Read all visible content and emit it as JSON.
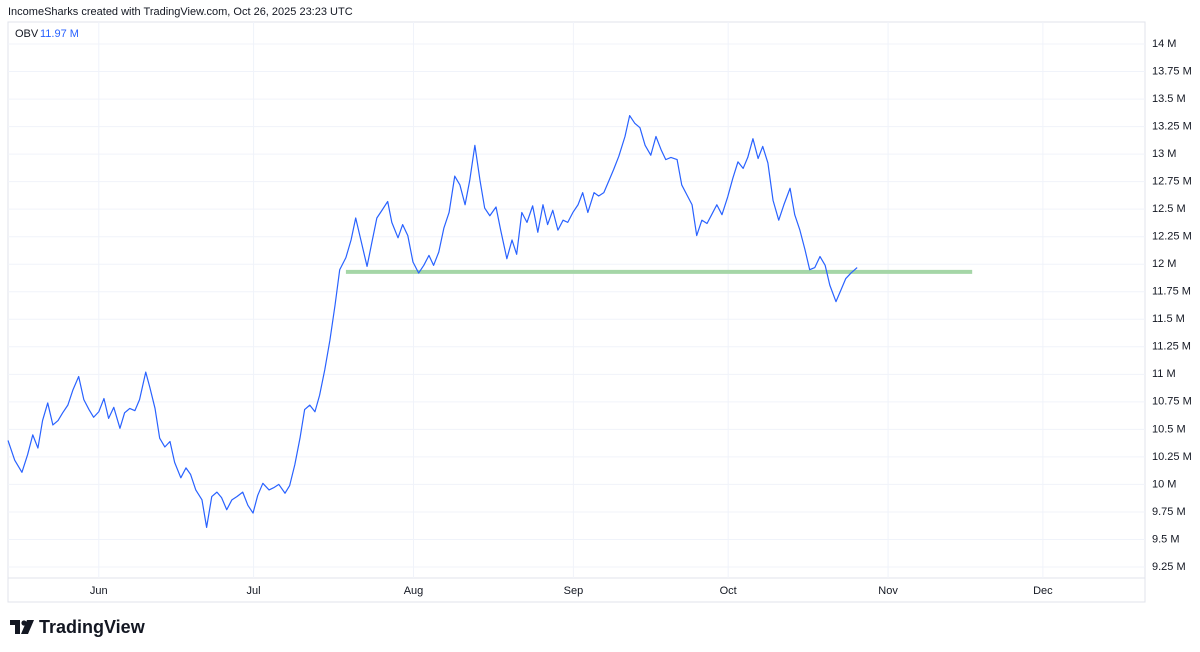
{
  "header": "IncomeSharks created with TradingView.com, Oct 26, 2025 23:23 UTC",
  "chart_data": {
    "type": "line",
    "indicator": "OBV",
    "legend_value": "11.97 M",
    "x": [
      -17.6,
      -16.3,
      -14.9,
      -13.8,
      -12.8,
      -11.8,
      -10.9,
      -9.9,
      -8.9,
      -7.9,
      -7.0,
      -6.0,
      -5.0,
      -3.9,
      -2.9,
      -1.9,
      -1.0,
      0,
      1.0,
      1.9,
      2.9,
      4.1,
      5.0,
      6.0,
      7.0,
      7.9,
      9.1,
      9.9,
      10.9,
      11.8,
      12.8,
      13.8,
      14.7,
      15.9,
      16.9,
      17.8,
      18.8,
      20.0,
      20.9,
      21.9,
      22.9,
      23.8,
      24.8,
      25.8,
      26.8,
      27.9,
      28.9,
      29.9,
      30.8,
      31.8,
      33.0,
      33.9,
      34.9,
      36.1,
      37.0,
      38.0,
      39.0,
      39.9,
      40.9,
      41.9,
      42.8,
      43.8,
      44.8,
      45.8,
      46.7,
      47.9,
      48.9,
      49.8,
      50.8,
      52.0,
      52.9,
      53.9,
      54.9,
      56.0,
      56.8,
      58.0,
      58.9,
      59.9,
      60.9,
      62.0,
      63.0,
      64.0,
      64.9,
      65.9,
      66.9,
      67.9,
      69.0,
      70.0,
      71.0,
      71.9,
      72.9,
      73.9,
      74.8,
      75.8,
      77.0,
      77.9,
      79.1,
      80.1,
      81.0,
      82.0,
      83.0,
      84.1,
      85.1,
      86.1,
      87.0,
      88.0,
      89.0,
      90.0,
      90.9,
      91.9,
      92.9,
      93.8,
      94.8,
      96.0,
      96.9,
      97.9,
      98.9,
      99.8,
      100.8,
      102.0,
      102.9,
      103.9,
      104.9,
      105.9,
      107.0,
      108.0,
      109.0,
      109.9,
      110.9,
      112.1,
      113.0,
      114.0,
      115.0,
      115.9,
      116.9,
      117.9,
      118.8,
      119.8,
      120.8,
      121.9,
      122.9,
      123.9,
      124.9,
      125.8,
      126.8,
      127.8,
      128.7,
      129.7,
      130.7,
      131.8,
      132.8,
      134.0,
      134.9,
      135.9,
      136.9,
      137.8,
      138.8,
      139.8,
      140.8,
      141.7,
      142.9,
      143.9,
      144.8,
      145.8,
      147.0
    ],
    "series": [
      {
        "name": "OBV",
        "color": "#2962ff",
        "values": [
          10.4,
          10.22,
          10.11,
          10.27,
          10.45,
          10.33,
          10.58,
          10.74,
          10.54,
          10.58,
          10.65,
          10.72,
          10.86,
          10.98,
          10.77,
          10.68,
          10.61,
          10.66,
          10.78,
          10.6,
          10.7,
          10.51,
          10.65,
          10.69,
          10.67,
          10.77,
          11.02,
          10.88,
          10.69,
          10.42,
          10.34,
          10.39,
          10.2,
          10.06,
          10.15,
          10.09,
          9.95,
          9.86,
          9.61,
          9.89,
          9.93,
          9.88,
          9.77,
          9.86,
          9.89,
          9.93,
          9.81,
          9.74,
          9.9,
          10.01,
          9.95,
          9.97,
          10.0,
          9.92,
          9.99,
          10.18,
          10.42,
          10.68,
          10.72,
          10.66,
          10.81,
          11.04,
          11.31,
          11.63,
          11.95,
          12.06,
          12.22,
          12.42,
          12.22,
          11.98,
          12.19,
          12.42,
          12.49,
          12.57,
          12.38,
          12.24,
          12.36,
          12.26,
          12.02,
          11.92,
          11.99,
          12.08,
          11.99,
          12.11,
          12.33,
          12.47,
          12.8,
          12.72,
          12.54,
          12.76,
          13.08,
          12.76,
          12.51,
          12.44,
          12.52,
          12.31,
          12.05,
          12.22,
          12.09,
          12.47,
          12.38,
          12.53,
          12.29,
          12.54,
          12.36,
          12.49,
          12.31,
          12.4,
          12.38,
          12.47,
          12.54,
          12.65,
          12.47,
          12.65,
          12.62,
          12.65,
          12.76,
          12.86,
          12.98,
          13.16,
          13.35,
          13.28,
          13.24,
          13.08,
          12.99,
          13.16,
          13.04,
          12.95,
          12.97,
          12.95,
          12.72,
          12.63,
          12.54,
          12.26,
          12.4,
          12.37,
          12.45,
          12.54,
          12.45,
          12.61,
          12.78,
          12.93,
          12.87,
          12.97,
          13.14,
          12.96,
          13.07,
          12.92,
          12.58,
          12.4,
          12.54,
          12.69,
          12.45,
          12.31,
          12.13,
          11.95,
          11.97,
          12.07,
          11.99,
          11.81,
          11.66,
          11.77,
          11.87,
          11.92,
          11.97
        ]
      }
    ],
    "hline": {
      "y": 11.93,
      "x": [
        47.9,
        169.3
      ],
      "color": "#a5d6a7"
    },
    "xlim": [
      -17.6,
      202.8
    ],
    "ylim": [
      9.15,
      14.2
    ],
    "xticks": [
      {
        "value": 0,
        "label": "Jun"
      },
      {
        "value": 30,
        "label": "Jul"
      },
      {
        "value": 61,
        "label": "Aug"
      },
      {
        "value": 92,
        "label": "Sep"
      },
      {
        "value": 122,
        "label": "Oct"
      },
      {
        "value": 153,
        "label": "Nov"
      },
      {
        "value": 183,
        "label": "Dec"
      }
    ],
    "yticks": [
      {
        "value": 9.25,
        "label": "9.25 M"
      },
      {
        "value": 9.5,
        "label": "9.5 M"
      },
      {
        "value": 9.75,
        "label": "9.75 M"
      },
      {
        "value": 10,
        "label": "10 M"
      },
      {
        "value": 10.25,
        "label": "10.25 M"
      },
      {
        "value": 10.5,
        "label": "10.5 M"
      },
      {
        "value": 10.75,
        "label": "10.75 M"
      },
      {
        "value": 11,
        "label": "11 M"
      },
      {
        "value": 11.25,
        "label": "11.25 M"
      },
      {
        "value": 11.5,
        "label": "11.5 M"
      },
      {
        "value": 11.75,
        "label": "11.75 M"
      },
      {
        "value": 12,
        "label": "12 M"
      },
      {
        "value": 12.25,
        "label": "12.25 M"
      },
      {
        "value": 12.5,
        "label": "12.5 M"
      },
      {
        "value": 12.75,
        "label": "12.75 M"
      },
      {
        "value": 13,
        "label": "13 M"
      },
      {
        "value": 13.25,
        "label": "13.25 M"
      },
      {
        "value": 13.5,
        "label": "13.5 M"
      },
      {
        "value": 13.75,
        "label": "13.75 M"
      },
      {
        "value": 14,
        "label": "14 M"
      }
    ],
    "grid": true
  },
  "footer": {
    "logo": "TradingView"
  }
}
